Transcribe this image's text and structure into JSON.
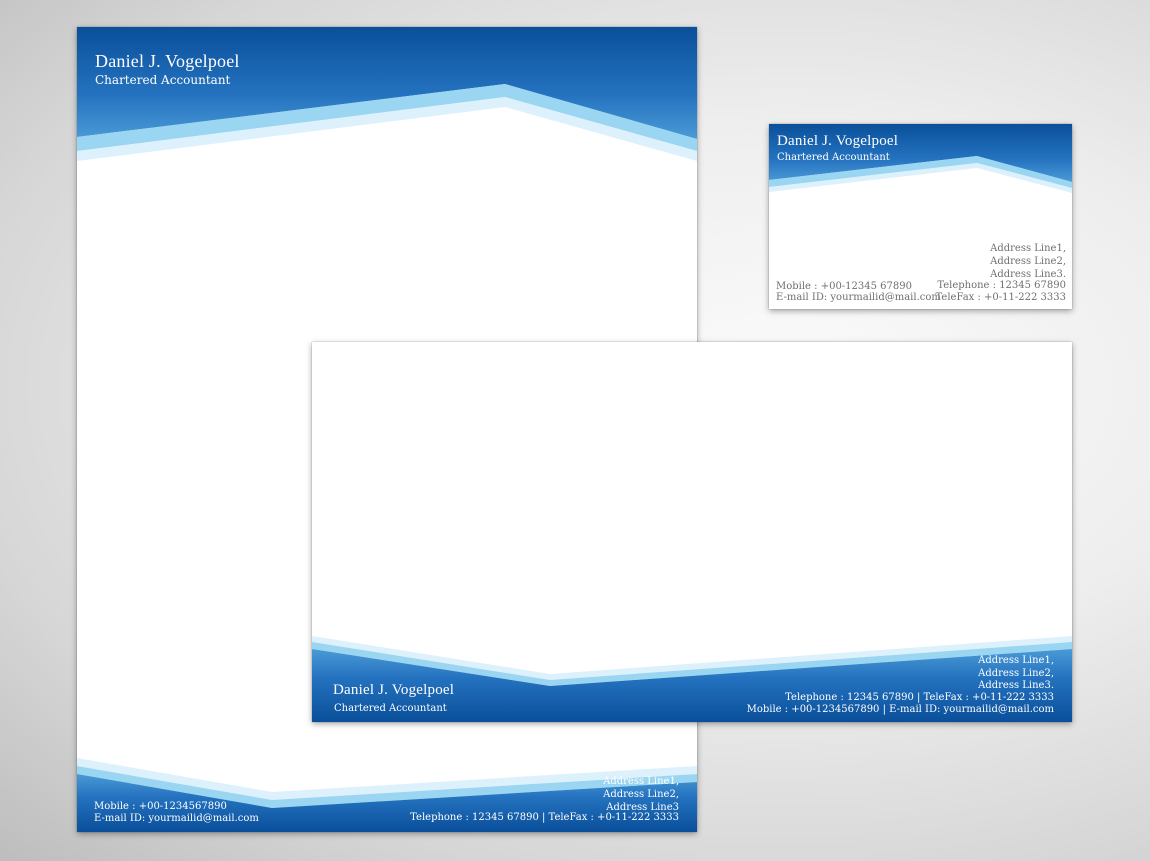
{
  "colors": {
    "brand_dark": "#0a4f9a",
    "brand_mid": "#2f7fc6",
    "brand_light": "#8fd0f0",
    "paper": "#ffffff",
    "contact_text_on_white": "#6f6f6f"
  },
  "letterhead": {
    "name": "Daniel J. Vogelpoel",
    "title": "Chartered Accountant",
    "mobile": "Mobile : +00-1234567890",
    "email": "E-mail ID: yourmailid@mail.com",
    "address_lines": [
      "Address Line1,",
      "Address Line2,",
      "Address Line3"
    ],
    "phone_fax": "Telephone : 12345 67890  | TeleFax : +0-11-222 3333"
  },
  "business_card": {
    "name": "Daniel J. Vogelpoel",
    "title": "Chartered Accountant",
    "address_lines": [
      "Address Line1,",
      "Address Line2,",
      "Address Line3."
    ],
    "mobile": "Mobile : +00-12345 67890",
    "email": "E-mail ID: yourmailid@mail.com",
    "telephone": "Telephone : 12345 67890",
    "telefax": "TeleFax : +0-11-222 3333"
  },
  "envelope": {
    "name": "Daniel J. Vogelpoel",
    "title": "Chartered Accountant",
    "address_lines": [
      "Address Line1,",
      "Address Line2,",
      "Address Line3."
    ],
    "phone_fax": "Telephone : 12345 67890  | TeleFax : +0-11-222 3333",
    "mobile_email": "Mobile : +00-1234567890  |  E-mail ID: yourmailid@mail.com"
  }
}
